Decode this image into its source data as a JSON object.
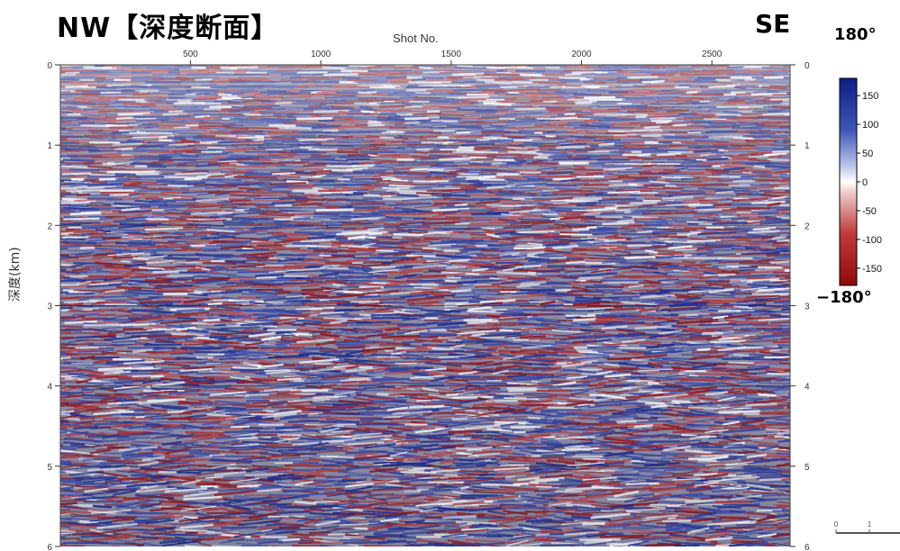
{
  "header": {
    "title_left": "NW【深度断面】",
    "title_right": "SE"
  },
  "chart_data": {
    "type": "heatmap",
    "xlabel": "Shot No.",
    "ylabel": "深度(km)",
    "x_ticks": [
      500,
      1000,
      1500,
      2000,
      2500
    ],
    "y_ticks": [
      0,
      1,
      2,
      3,
      4,
      5,
      6
    ],
    "xlim": [
      1,
      2800
    ],
    "ylim": [
      0,
      6
    ],
    "colorbar": {
      "title_top": "180°",
      "title_bottom": "−180°",
      "ticks": [
        150,
        100,
        50,
        0,
        -50,
        -100,
        -150
      ],
      "range": [
        -180,
        180
      ],
      "colors": {
        "high": "#1a2f8f",
        "mid": "#ffffff",
        "low": "#9b0c0c"
      }
    },
    "scale_bar_ticks": [
      "0",
      "1"
    ]
  }
}
